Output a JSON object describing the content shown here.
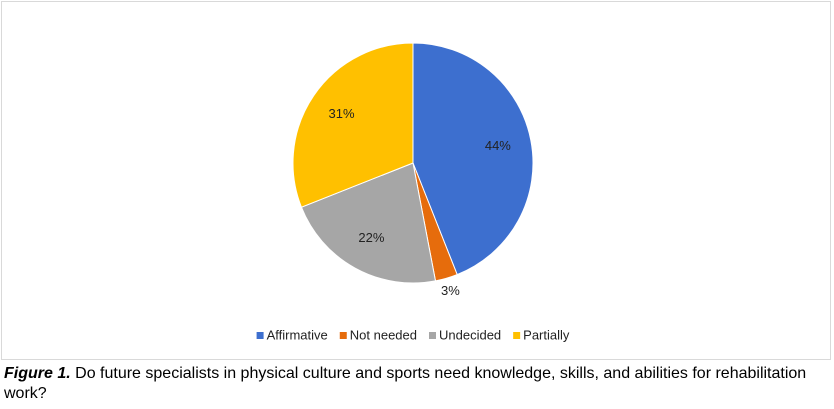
{
  "chart_data": {
    "type": "pie",
    "categories": [
      "Affirmative",
      "Not needed",
      "Undecided",
      "Partially"
    ],
    "values": [
      44,
      3,
      22,
      31
    ],
    "value_labels": [
      "44%",
      "3%",
      "22%",
      "31%"
    ],
    "colors": [
      "#3d6fcf",
      "#e66c0c",
      "#a6a6a6",
      "#ffc000"
    ],
    "legend": "bottom",
    "figure_label": "Figure 1.",
    "caption": "Do future specialists in physical culture and sports need knowledge, skills, and abilities for rehabilitation work?"
  }
}
